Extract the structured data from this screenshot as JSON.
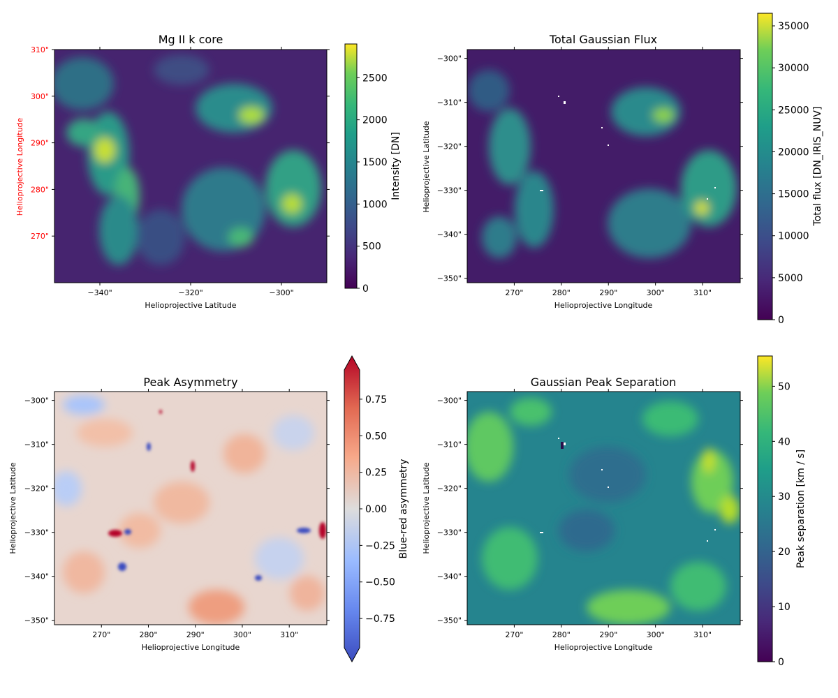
{
  "chart_data": [
    {
      "type": "heatmap",
      "title": "Mg II k core",
      "xlabel": "Helioprojective Latitude",
      "ylabel": "Helioprojective Longitude",
      "label_color": "#ff0000",
      "xticks": [
        "−340\"",
        "−320\"",
        "−300\""
      ],
      "xtick_values": [
        -340,
        -320,
        -300
      ],
      "xlim": [
        -350,
        -290
      ],
      "yticks": [
        "310\"",
        "300\"",
        "290\"",
        "280\"",
        "270\""
      ],
      "ytick_values": [
        310,
        300,
        290,
        280,
        270
      ],
      "ylim": [
        260,
        310
      ],
      "colormap": "viridis",
      "colorbar": {
        "label": "Intensity [DN]",
        "ticks": [
          "0",
          "500",
          "1000",
          "1500",
          "2000",
          "2500"
        ],
        "tick_values": [
          0,
          500,
          1000,
          1500,
          2000,
          2500
        ],
        "range": [
          0,
          2900
        ]
      }
    },
    {
      "type": "heatmap",
      "title": "Total Gaussian Flux",
      "xlabel": "Helioprojective Longitude",
      "ylabel": "Helioprojective Latitude",
      "xticks": [
        "270\"",
        "280\"",
        "290\"",
        "300\"",
        "310\""
      ],
      "xtick_values": [
        270,
        280,
        290,
        300,
        310
      ],
      "xlim": [
        260,
        318
      ],
      "yticks": [
        "−300\"",
        "−310\"",
        "−320\"",
        "−330\"",
        "−340\"",
        "−350\""
      ],
      "ytick_values": [
        -300,
        -310,
        -320,
        -330,
        -340,
        -350
      ],
      "ylim": [
        -351,
        -298
      ],
      "colormap": "viridis",
      "colorbar": {
        "label": "Total flux [DN_IRIS_NUV]",
        "ticks": [
          "0",
          "5000",
          "10000",
          "15000",
          "20000",
          "25000",
          "30000",
          "35000"
        ],
        "tick_values": [
          0,
          5000,
          10000,
          15000,
          20000,
          25000,
          30000,
          35000
        ],
        "range": [
          0,
          36500
        ]
      }
    },
    {
      "type": "heatmap",
      "title": "Peak Asymmetry",
      "xlabel": "Helioprojective Longitude",
      "ylabel": "Helioprojective Latitude",
      "xticks": [
        "270\"",
        "280\"",
        "290\"",
        "300\"",
        "310\""
      ],
      "xtick_values": [
        270,
        280,
        290,
        300,
        310
      ],
      "xlim": [
        260,
        318
      ],
      "yticks": [
        "−300\"",
        "−310\"",
        "−320\"",
        "−330\"",
        "−340\"",
        "−350\""
      ],
      "ytick_values": [
        -300,
        -310,
        -320,
        -330,
        -340,
        -350
      ],
      "ylim": [
        -351,
        -298
      ],
      "colormap": "coolwarm",
      "colorbar": {
        "label": "Blue-red asymmetry",
        "ticks": [
          "0.75",
          "0.50",
          "0.25",
          "0.00",
          "−0.25",
          "−0.50",
          "−0.75"
        ],
        "tick_values": [
          0.75,
          0.5,
          0.25,
          0.0,
          -0.25,
          -0.5,
          -0.75
        ],
        "range": [
          -0.95,
          0.95
        ],
        "extend": "both"
      }
    },
    {
      "type": "heatmap",
      "title": "Gaussian Peak Separation",
      "xlabel": "Helioprojective Longitude",
      "ylabel": "Helioprojective Latitude",
      "xticks": [
        "270\"",
        "280\"",
        "290\"",
        "300\"",
        "310\""
      ],
      "xtick_values": [
        270,
        280,
        290,
        300,
        310
      ],
      "xlim": [
        260,
        318
      ],
      "yticks": [
        "−300\"",
        "−310\"",
        "−320\"",
        "−330\"",
        "−340\"",
        "−350\""
      ],
      "ytick_values": [
        -300,
        -310,
        -320,
        -330,
        -340,
        -350
      ],
      "ylim": [
        -351,
        -298
      ],
      "colormap": "viridis",
      "colorbar": {
        "label": "Peak separation [km / s]",
        "ticks": [
          "0",
          "10",
          "20",
          "30",
          "40",
          "50"
        ],
        "tick_values": [
          0,
          10,
          20,
          30,
          40,
          50
        ],
        "range": [
          0,
          55.5
        ]
      }
    }
  ]
}
